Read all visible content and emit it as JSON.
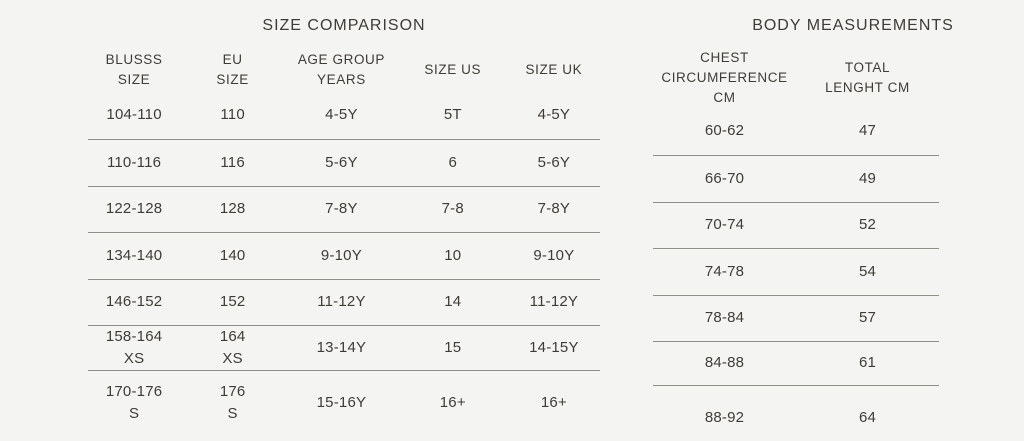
{
  "size_comparison": {
    "title": "SIZE COMPARISON",
    "columns": [
      "BLUSSS\nSIZE",
      "EU\nSIZE",
      "AGE GROUP\nYEARS",
      "SIZE US",
      "SIZE UK"
    ],
    "rows": [
      [
        "104-110",
        "110",
        "4-5Y",
        "5T",
        "4-5Y"
      ],
      [
        "110-116",
        "116",
        "5-6Y",
        "6",
        "5-6Y"
      ],
      [
        "122-128",
        "128",
        "7-8Y",
        "7-8",
        "7-8Y"
      ],
      [
        "134-140",
        "140",
        "9-10Y",
        "10",
        "9-10Y"
      ],
      [
        "146-152",
        "152",
        "11-12Y",
        "14",
        "11-12Y"
      ],
      [
        "158-164\nXS",
        "164\nXS",
        "13-14Y",
        "15",
        "14-15Y"
      ],
      [
        "170-176\nS",
        "176\nS",
        "15-16Y",
        "16+",
        "16+"
      ]
    ]
  },
  "body_measurements": {
    "title": "BODY MEASUREMENTS",
    "columns": [
      "CHEST\nCIRCUMFERENCE CM",
      "TOTAL\nLENGHT CM"
    ],
    "rows": [
      [
        "60-62",
        "47"
      ],
      [
        "66-70",
        "49"
      ],
      [
        "70-74",
        "52"
      ],
      [
        "74-78",
        "54"
      ],
      [
        "78-84",
        "57"
      ],
      [
        "84-88",
        "61"
      ],
      [
        "88-92",
        "64"
      ]
    ]
  },
  "colors": {
    "background": "#f4f4f2",
    "text": "#3e3c37",
    "divider": "#8f8e89"
  }
}
